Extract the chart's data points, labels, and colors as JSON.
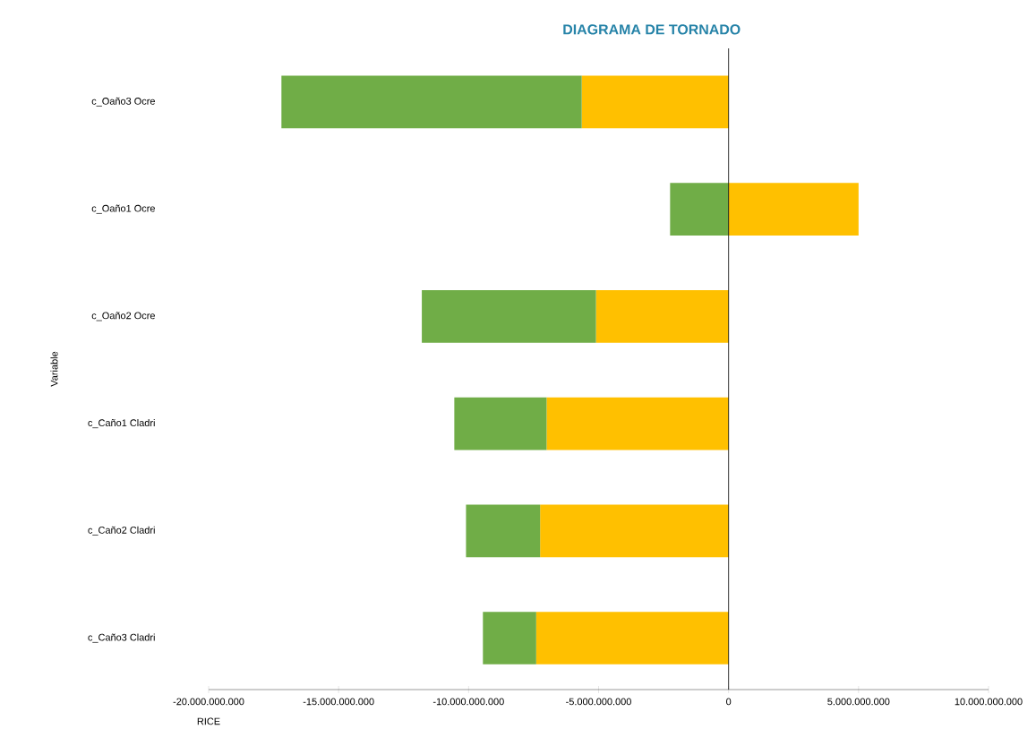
{
  "chart_data": {
    "type": "bar",
    "orientation": "horizontal",
    "title": "DIAGRAMA DE TORNADO",
    "xlabel": "RICE",
    "ylabel": "Variable",
    "categories": [
      "c_Oaño3 Ocre",
      "c_Oaño1 Ocre",
      "c_Oaño2 Ocre",
      "c_Caño1 Cladri",
      "c_Caño2 Cladri",
      "c_Caño3 Cladri"
    ],
    "series": [
      {
        "color": "#ffc000",
        "values": [
          -5650000000,
          5000000000,
          -5100000000,
          -7000000000,
          -7250000000,
          -7400000000
        ]
      },
      {
        "color": "#70ad47",
        "values": [
          -11550000000,
          -2250000000,
          -6700000000,
          -3550000000,
          -2850000000,
          -2050000000
        ]
      }
    ],
    "xlim": [
      -20000000000,
      10000000000
    ],
    "xticks": [
      {
        "value": -20000000000,
        "label": "-20.000.000.000"
      },
      {
        "value": -15000000000,
        "label": "-15.000.000.000"
      },
      {
        "value": -10000000000,
        "label": "-10.000.000.000"
      },
      {
        "value": -5000000000,
        "label": "-5.000.000.000"
      },
      0,
      {
        "value": 5000000000,
        "label": "5.000.000.000"
      },
      {
        "value": 10000000000,
        "label": "10.000.000.000"
      }
    ],
    "ref_lines": [
      {
        "axis": "x",
        "value": 0,
        "color": "#000000"
      }
    ],
    "stacked": true,
    "grid": false
  }
}
